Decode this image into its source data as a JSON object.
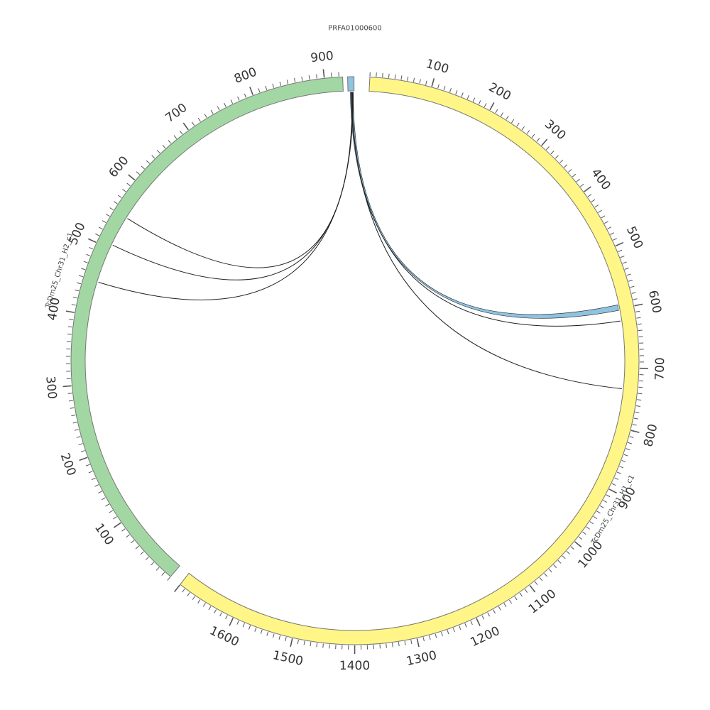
{
  "diagram": {
    "type": "circos",
    "colors": {
      "band_stroke": "#777777",
      "tick": "#555555",
      "link_stroke": "#222222",
      "blue_link_fill": "#8fc3df"
    },
    "segments": [
      {
        "id": "h1",
        "label": "TcDm25_Chr31_H1_c1",
        "color": "#fff687",
        "tick_labels": [
          "100",
          "200",
          "300",
          "400",
          "500",
          "600",
          "700",
          "800",
          "900",
          "1000",
          "1100",
          "1200",
          "1300",
          "1400",
          "1500",
          "1600"
        ]
      },
      {
        "id": "h2",
        "label": "TcDm25_Chr31_H2_c1",
        "color": "#a2d7a4",
        "tick_labels": [
          "100",
          "200",
          "300",
          "400",
          "500",
          "600",
          "700",
          "800",
          "900"
        ]
      },
      {
        "id": "prfa",
        "label": "PRFA01000600",
        "color": "#8fc3df",
        "tick_labels": []
      }
    ]
  }
}
